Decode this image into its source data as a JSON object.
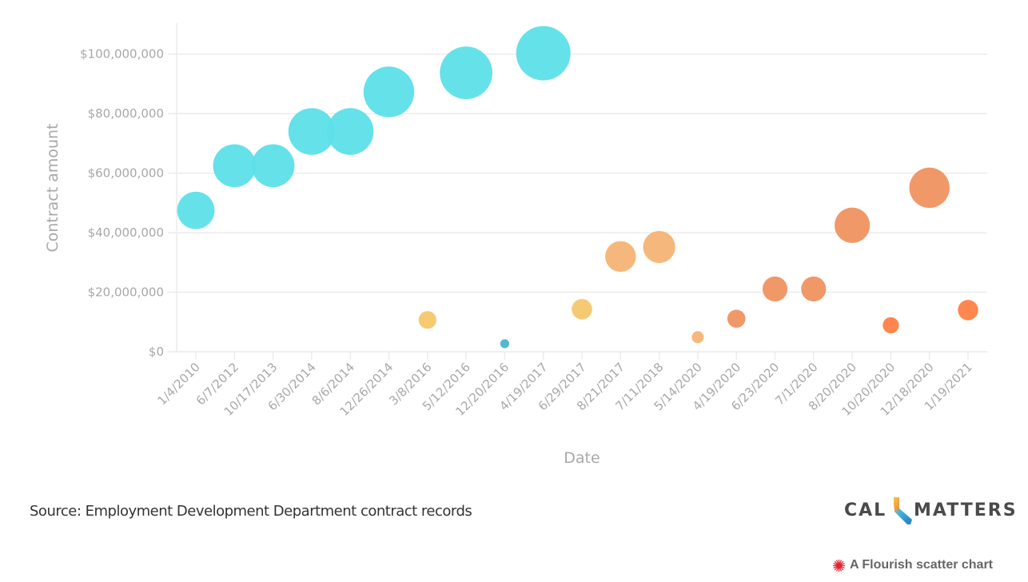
{
  "chart_data": {
    "type": "scatter",
    "title": "",
    "xlabel": "Date",
    "ylabel": "Contract amount",
    "ylim": [
      0,
      107000000
    ],
    "yticks": [
      0,
      20000000,
      40000000,
      60000000,
      80000000,
      100000000
    ],
    "ytick_labels": [
      "$0",
      "$20,000,000",
      "$40,000,000",
      "$60,000,000",
      "$80,000,000",
      "$100,000,000"
    ],
    "grid": true,
    "categories": [
      "1/4/2010",
      "6/7/2012",
      "10/17/2013",
      "6/30/2014",
      "8/6/2014",
      "12/26/2014",
      "3/8/2016",
      "5/12/2016",
      "12/20/2016",
      "4/19/2017",
      "6/29/2017",
      "8/21/2017",
      "7/11/2018",
      "5/14/2020",
      "4/19/2020",
      "6/23/2020",
      "7/1/2020",
      "8/20/2020",
      "10/20/2020",
      "12/18/2020",
      "1/19/2021"
    ],
    "values": [
      47500000,
      62500000,
      62500000,
      74000000,
      74000000,
      87300000,
      10700000,
      93700000,
      2700000,
      100300000,
      14300000,
      32000000,
      35200000,
      4900000,
      11100000,
      21100000,
      21100000,
      42500000,
      8900000,
      55100000,
      14000000
    ],
    "point_colors": [
      "#5ddfe8",
      "#5ddfe8",
      "#5ddfe8",
      "#5ddfe8",
      "#5ddfe8",
      "#5ddfe8",
      "#f5c76a",
      "#5ddfe8",
      "#4ab3d0",
      "#5ddfe8",
      "#f5c76a",
      "#f4b374",
      "#f4b374",
      "#f4b374",
      "#f09260",
      "#f09260",
      "#f09260",
      "#f09260",
      "#ff7f44",
      "#f09260",
      "#ff7f44"
    ],
    "size_encodes": "Contract amount"
  },
  "footer": {
    "source": "Source: Employment Development Department contract records",
    "logo_left": "CAL",
    "logo_right": "MATTERS",
    "credit": "A Flourish scatter chart"
  },
  "colors": {
    "grid": "#ececec",
    "tick_text": "#a8a8a8",
    "flourish_red": "#e8212e"
  }
}
